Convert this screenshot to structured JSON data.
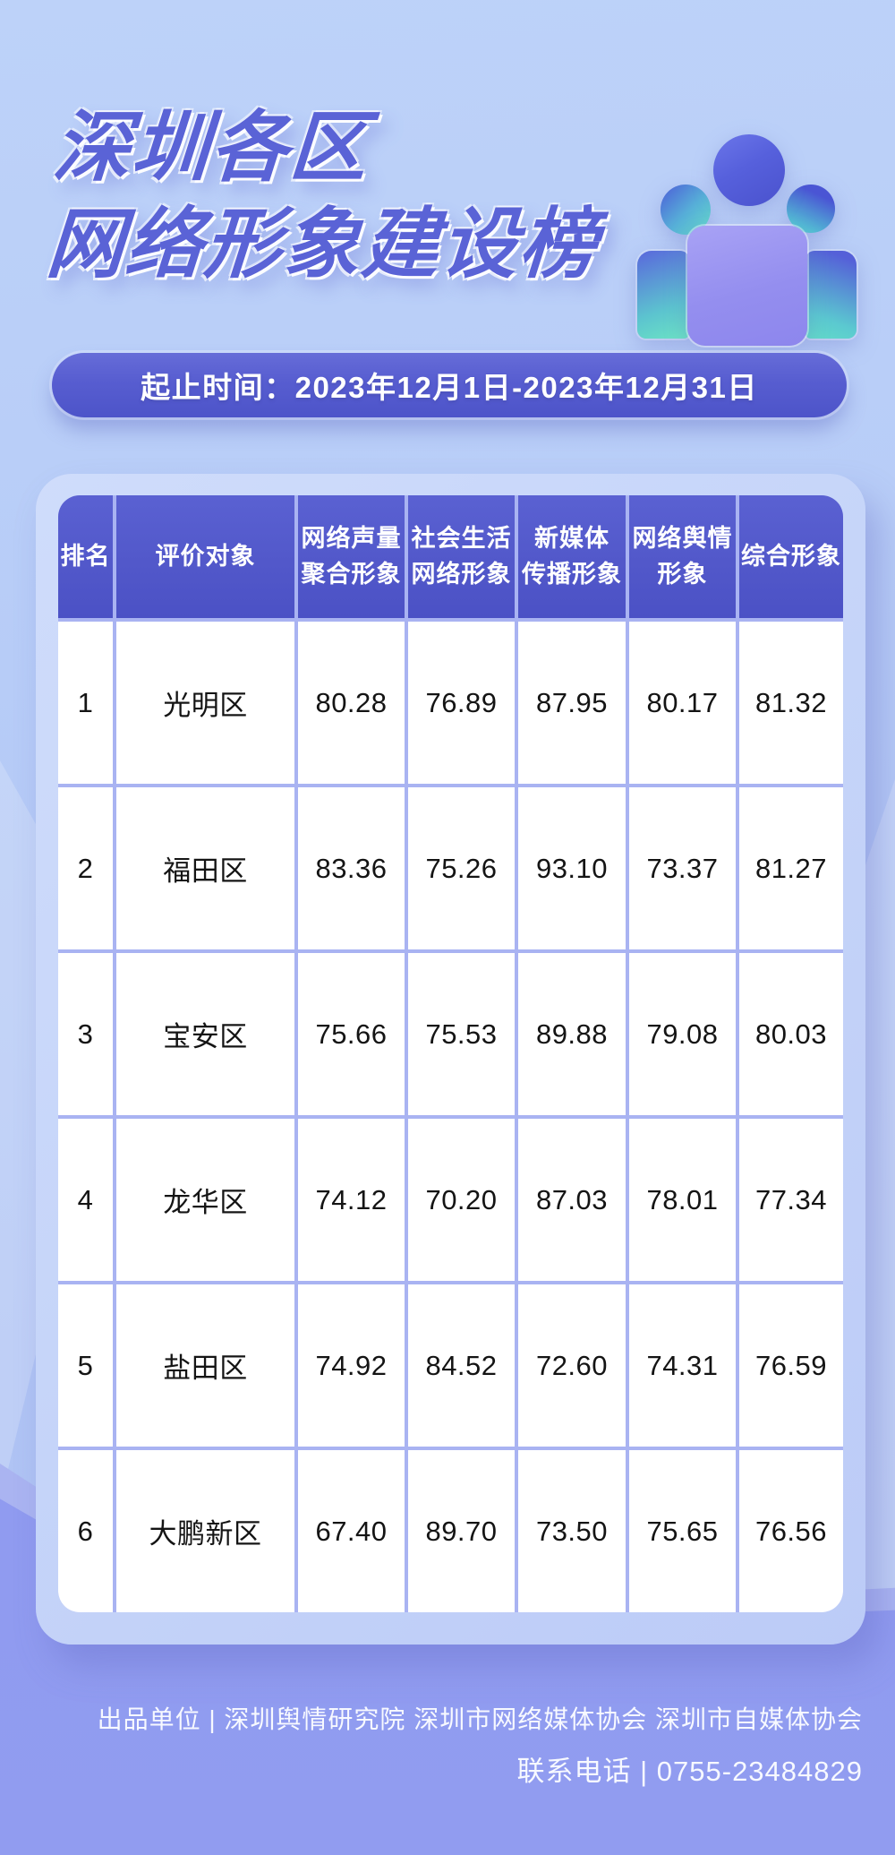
{
  "title": {
    "line1": "深圳各区",
    "line2": "网络形象建设榜"
  },
  "banner": {
    "text": "起止时间：2023年12月1日-2023年12月31日"
  },
  "hero_icon": "people-group-icon",
  "table": {
    "headers": [
      "排名",
      "评价对象",
      "网络声量\n聚合形象",
      "社会生活\n网络形象",
      "新媒体\n传播形象",
      "网络舆情\n形象",
      "综合形象"
    ],
    "rows": [
      {
        "rank": "1",
        "name": "光明区",
        "scores": [
          "80.28",
          "76.89",
          "87.95",
          "80.17",
          "81.32"
        ]
      },
      {
        "rank": "2",
        "name": "福田区",
        "scores": [
          "83.36",
          "75.26",
          "93.10",
          "73.37",
          "81.27"
        ]
      },
      {
        "rank": "3",
        "name": "宝安区",
        "scores": [
          "75.66",
          "75.53",
          "89.88",
          "79.08",
          "80.03"
        ]
      },
      {
        "rank": "4",
        "name": "龙华区",
        "scores": [
          "74.12",
          "70.20",
          "87.03",
          "78.01",
          "77.34"
        ]
      },
      {
        "rank": "5",
        "name": "盐田区",
        "scores": [
          "74.92",
          "84.52",
          "72.60",
          "74.31",
          "76.59"
        ]
      },
      {
        "rank": "6",
        "name": "大鹏新区",
        "scores": [
          "67.40",
          "89.70",
          "73.50",
          "75.65",
          "76.56"
        ]
      }
    ]
  },
  "footer": {
    "line1": "出品单位 | 深圳舆情研究院 深圳市网络媒体协会 深圳市自媒体协会",
    "line2": "联系电话 | 0755-23484829"
  },
  "colors": {
    "background_top": "#b9d0f8",
    "background_bottom_wave": "#8e99ef",
    "title_text": "#5a63d6",
    "banner_background": "#575dd0",
    "header_background": "#5258ca",
    "grid_line": "#a9b3f2",
    "panel_background": "#c6d5f9",
    "cell_background": "#ffffff"
  },
  "chart_data": {
    "type": "table",
    "title": "深圳各区网络形象建设榜",
    "period": "2023年12月1日-2023年12月31日",
    "columns": [
      "排名",
      "评价对象",
      "网络声量聚合形象",
      "社会生活网络形象",
      "新媒体传播形象",
      "网络舆情形象",
      "综合形象"
    ],
    "rows": [
      [
        1,
        "光明区",
        80.28,
        76.89,
        87.95,
        80.17,
        81.32
      ],
      [
        2,
        "福田区",
        83.36,
        75.26,
        93.1,
        73.37,
        81.27
      ],
      [
        3,
        "宝安区",
        75.66,
        75.53,
        89.88,
        79.08,
        80.03
      ],
      [
        4,
        "龙华区",
        74.12,
        70.2,
        87.03,
        78.01,
        77.34
      ],
      [
        5,
        "盐田区",
        74.92,
        84.52,
        72.6,
        74.31,
        76.59
      ],
      [
        6,
        "大鹏新区",
        67.4,
        89.7,
        73.5,
        75.65,
        76.56
      ]
    ]
  }
}
